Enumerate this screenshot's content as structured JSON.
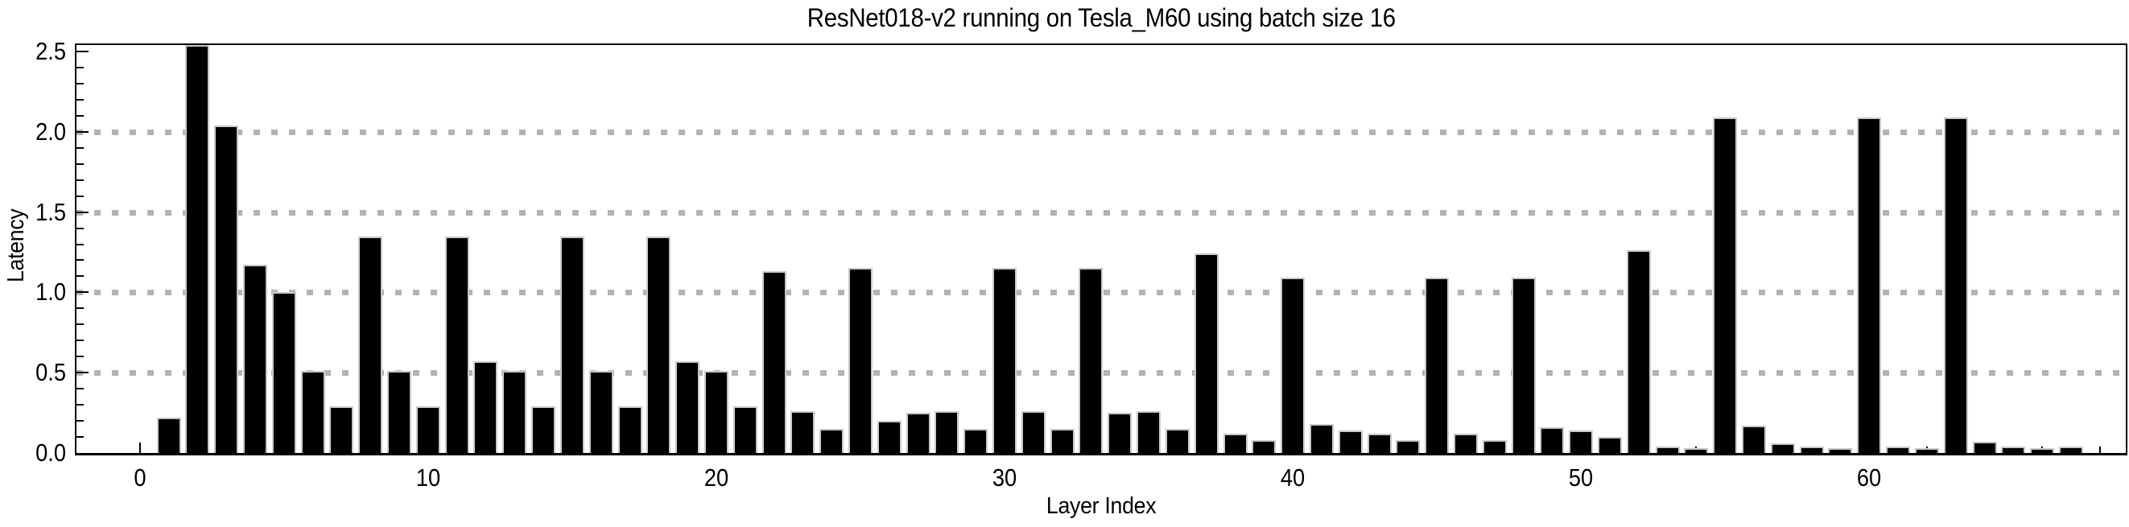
{
  "page": {
    "background": "#ffffff"
  },
  "chart_data": {
    "type": "bar",
    "title": "ResNet018-v2 running on Tesla_M60 using batch size 16",
    "xlabel": "Layer Index",
    "ylabel": "Latency",
    "x": [
      1,
      2,
      3,
      4,
      5,
      6,
      7,
      8,
      9,
      10,
      11,
      12,
      13,
      14,
      15,
      16,
      17,
      18,
      19,
      20,
      21,
      22,
      23,
      24,
      25,
      26,
      27,
      28,
      29,
      30,
      31,
      32,
      33,
      34,
      35,
      36,
      37,
      38,
      39,
      40,
      41,
      42,
      43,
      44,
      45,
      46,
      47,
      48,
      49,
      50,
      51,
      52,
      53,
      54,
      55,
      56,
      57,
      58,
      59,
      60,
      61,
      62,
      63,
      64,
      65,
      66,
      67
    ],
    "values": [
      0.22,
      2.55,
      2.04,
      1.17,
      1.0,
      0.51,
      0.29,
      1.35,
      0.51,
      0.29,
      1.35,
      0.57,
      0.51,
      0.29,
      1.35,
      0.51,
      0.29,
      1.35,
      0.57,
      0.51,
      0.29,
      1.13,
      0.26,
      0.15,
      1.15,
      0.2,
      0.25,
      0.26,
      0.15,
      1.15,
      0.26,
      0.15,
      1.15,
      0.25,
      0.26,
      0.15,
      1.24,
      0.12,
      0.08,
      1.09,
      0.18,
      0.14,
      0.12,
      0.08,
      1.09,
      0.12,
      0.08,
      1.09,
      0.16,
      0.14,
      0.1,
      1.26,
      0.04,
      0.03,
      2.09,
      0.17,
      0.06,
      0.04,
      0.03,
      2.09,
      0.04,
      0.03,
      2.09,
      0.07,
      0.04,
      0.03,
      0.04
    ],
    "clipped_bar_x": 2,
    "xlim": [
      -2.2,
      68.9
    ],
    "ylim": [
      0,
      2.54
    ],
    "xticks_major": [
      0,
      10,
      20,
      30,
      40,
      50,
      60
    ],
    "xtick_labels": [
      "0",
      "10",
      "20",
      "30",
      "40",
      "50",
      "60"
    ],
    "xticks_minor_step": 2,
    "yticks_major": [
      0,
      0.5,
      1,
      1.5,
      2,
      2.5
    ],
    "ytick_labels": [
      "0.0",
      "0.5",
      "1.0",
      "1.5",
      "2.0",
      "2.5"
    ],
    "yticks_minor_step": 0.1,
    "gridlines_y": [
      0.5,
      1.0,
      1.5,
      2.0
    ],
    "grid_style": "dotted",
    "legend_position": "none",
    "colors": {
      "bar": "#000000",
      "bar_edge": "#c9c9c9",
      "grid": "#b3b3b3",
      "axis": "#000000",
      "text": "#000000",
      "background": "#ffffff"
    }
  }
}
